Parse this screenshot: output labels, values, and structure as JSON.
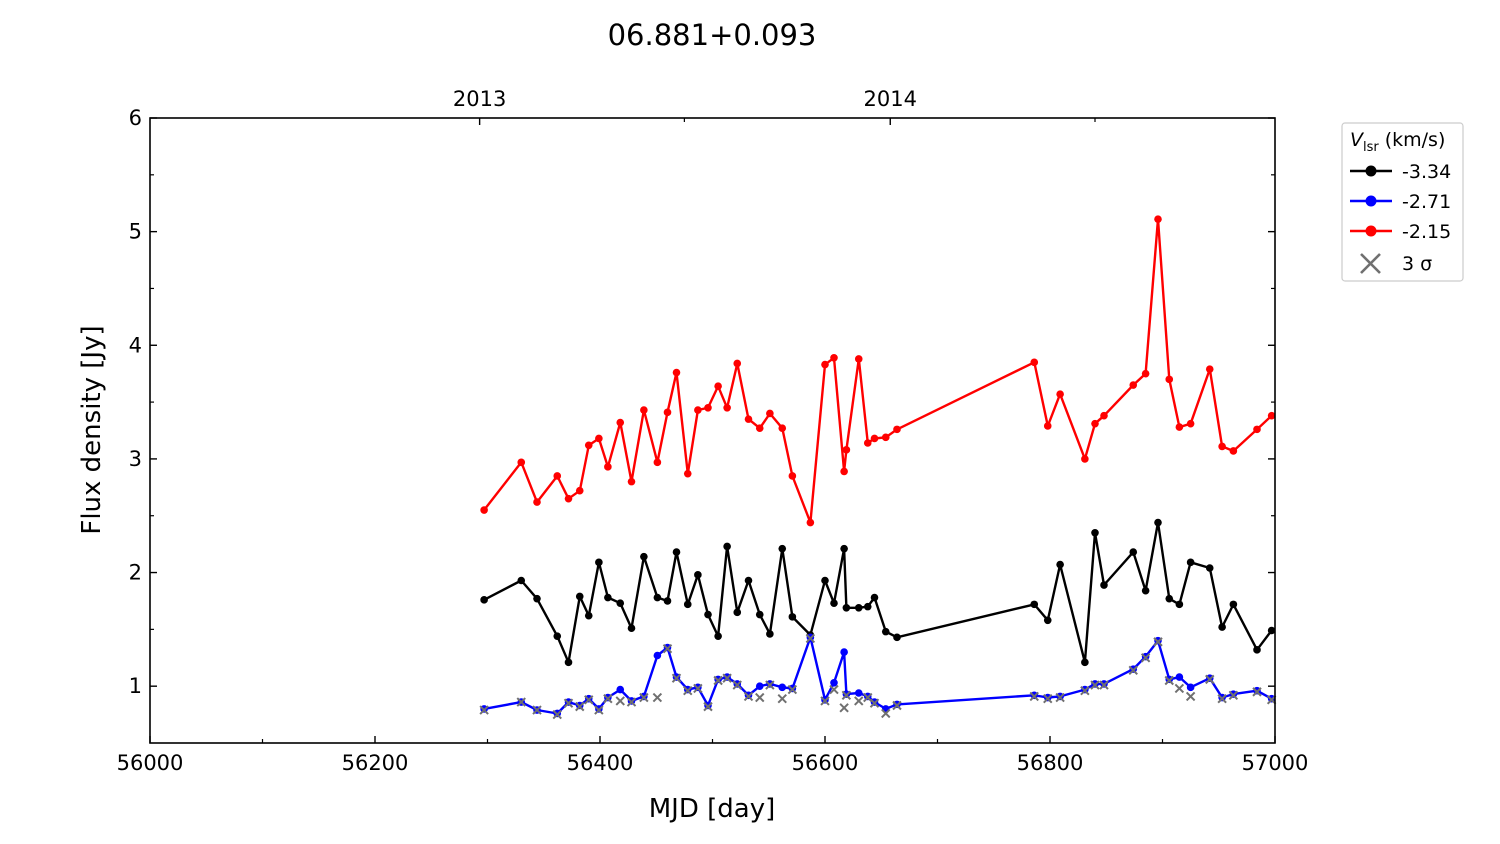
{
  "chart_data": {
    "type": "line",
    "title": "06.881+0.093",
    "xlabel": "MJD [day]",
    "ylabel": "Flux density [Jy]",
    "xlim": [
      56000,
      57000
    ],
    "ylim": [
      0.5,
      6
    ],
    "x_ticks": [
      "56000",
      "56200",
      "56400",
      "56600",
      "56800",
      "57000"
    ],
    "y_ticks": [
      "1",
      "2",
      "3",
      "4",
      "5",
      "6"
    ],
    "top_axis_labels": [
      {
        "label": "2013",
        "x": 56293
      },
      {
        "label": "2014",
        "x": 56658
      }
    ],
    "legend": {
      "title_main": "V",
      "title_sub": "lsr",
      "title_unit": "(km/s)",
      "placement": "upper-right-outside",
      "sigma_label": "3 σ"
    },
    "series": [
      {
        "name": "-3.34",
        "color": "#000000",
        "points": [
          [
            56297,
            1.76
          ],
          [
            56330,
            1.93
          ],
          [
            56344,
            1.77
          ],
          [
            56362,
            1.44
          ],
          [
            56372,
            1.21
          ],
          [
            56382,
            1.79
          ],
          [
            56390,
            1.62
          ],
          [
            56399,
            2.09
          ],
          [
            56407,
            1.78
          ],
          [
            56418,
            1.73
          ],
          [
            56428,
            1.51
          ],
          [
            56439,
            2.14
          ],
          [
            56451,
            1.78
          ],
          [
            56460,
            1.75
          ],
          [
            56468,
            2.18
          ],
          [
            56478,
            1.72
          ],
          [
            56487,
            1.98
          ],
          [
            56496,
            1.63
          ],
          [
            56505,
            1.44
          ],
          [
            56513,
            2.23
          ],
          [
            56522,
            1.65
          ],
          [
            56532,
            1.93
          ],
          [
            56542,
            1.63
          ],
          [
            56551,
            1.46
          ],
          [
            56562,
            2.21
          ],
          [
            56571,
            1.61
          ],
          [
            56587,
            1.45
          ],
          [
            56600,
            1.93
          ],
          [
            56608,
            1.73
          ],
          [
            56617,
            2.21
          ],
          [
            56619,
            1.69
          ],
          [
            56630,
            1.69
          ],
          [
            56638,
            1.7
          ],
          [
            56644,
            1.78
          ],
          [
            56654,
            1.48
          ],
          [
            56664,
            1.43
          ],
          [
            56786,
            1.72
          ],
          [
            56798,
            1.58
          ],
          [
            56809,
            2.07
          ],
          [
            56831,
            1.21
          ],
          [
            56840,
            2.35
          ],
          [
            56848,
            1.89
          ],
          [
            56874,
            2.18
          ],
          [
            56885,
            1.84
          ],
          [
            56896,
            2.44
          ],
          [
            56906,
            1.77
          ],
          [
            56915,
            1.72
          ],
          [
            56925,
            2.09
          ],
          [
            56942,
            2.04
          ],
          [
            56953,
            1.52
          ],
          [
            56963,
            1.72
          ],
          [
            56984,
            1.32
          ],
          [
            56997,
            1.49
          ]
        ]
      },
      {
        "name": "-2.71",
        "color": "#0000ff",
        "points": [
          [
            56297,
            0.8
          ],
          [
            56330,
            0.86
          ],
          [
            56344,
            0.79
          ],
          [
            56362,
            0.76
          ],
          [
            56372,
            0.86
          ],
          [
            56382,
            0.83
          ],
          [
            56390,
            0.89
          ],
          [
            56399,
            0.8
          ],
          [
            56407,
            0.9
          ],
          [
            56418,
            0.97
          ],
          [
            56428,
            0.87
          ],
          [
            56439,
            0.91
          ],
          [
            56451,
            1.27
          ],
          [
            56460,
            1.34
          ],
          [
            56468,
            1.08
          ],
          [
            56478,
            0.97
          ],
          [
            56487,
            0.99
          ],
          [
            56496,
            0.83
          ],
          [
            56505,
            1.06
          ],
          [
            56513,
            1.08
          ],
          [
            56522,
            1.02
          ],
          [
            56532,
            0.92
          ],
          [
            56542,
            1.0
          ],
          [
            56551,
            1.02
          ],
          [
            56562,
            0.99
          ],
          [
            56571,
            0.98
          ],
          [
            56587,
            1.43
          ],
          [
            56600,
            0.88
          ],
          [
            56608,
            1.03
          ],
          [
            56617,
            1.3
          ],
          [
            56619,
            0.93
          ],
          [
            56630,
            0.94
          ],
          [
            56638,
            0.91
          ],
          [
            56644,
            0.86
          ],
          [
            56654,
            0.8
          ],
          [
            56664,
            0.84
          ],
          [
            56786,
            0.92
          ],
          [
            56798,
            0.9
          ],
          [
            56809,
            0.91
          ],
          [
            56831,
            0.97
          ],
          [
            56840,
            1.02
          ],
          [
            56848,
            1.02
          ],
          [
            56874,
            1.15
          ],
          [
            56885,
            1.26
          ],
          [
            56896,
            1.4
          ],
          [
            56906,
            1.06
          ],
          [
            56915,
            1.08
          ],
          [
            56925,
            0.99
          ],
          [
            56942,
            1.07
          ],
          [
            56953,
            0.9
          ],
          [
            56963,
            0.93
          ],
          [
            56984,
            0.96
          ],
          [
            56997,
            0.89
          ]
        ]
      },
      {
        "name": "-2.15",
        "color": "#ff0000",
        "points": [
          [
            56297,
            2.55
          ],
          [
            56330,
            2.97
          ],
          [
            56344,
            2.62
          ],
          [
            56362,
            2.85
          ],
          [
            56372,
            2.65
          ],
          [
            56382,
            2.72
          ],
          [
            56390,
            3.12
          ],
          [
            56399,
            3.18
          ],
          [
            56407,
            2.93
          ],
          [
            56418,
            3.32
          ],
          [
            56428,
            2.8
          ],
          [
            56439,
            3.43
          ],
          [
            56451,
            2.97
          ],
          [
            56460,
            3.41
          ],
          [
            56468,
            3.76
          ],
          [
            56478,
            2.87
          ],
          [
            56487,
            3.43
          ],
          [
            56496,
            3.45
          ],
          [
            56505,
            3.64
          ],
          [
            56513,
            3.45
          ],
          [
            56522,
            3.84
          ],
          [
            56532,
            3.35
          ],
          [
            56542,
            3.27
          ],
          [
            56551,
            3.4
          ],
          [
            56562,
            3.27
          ],
          [
            56571,
            2.85
          ],
          [
            56587,
            2.44
          ],
          [
            56600,
            3.83
          ],
          [
            56608,
            3.89
          ],
          [
            56617,
            2.89
          ],
          [
            56619,
            3.08
          ],
          [
            56630,
            3.88
          ],
          [
            56638,
            3.14
          ],
          [
            56644,
            3.18
          ],
          [
            56654,
            3.19
          ],
          [
            56664,
            3.26
          ],
          [
            56786,
            3.85
          ],
          [
            56798,
            3.29
          ],
          [
            56809,
            3.57
          ],
          [
            56831,
            3.0
          ],
          [
            56840,
            3.31
          ],
          [
            56848,
            3.38
          ],
          [
            56874,
            3.65
          ],
          [
            56885,
            3.75
          ],
          [
            56896,
            5.11
          ],
          [
            56906,
            3.7
          ],
          [
            56915,
            3.28
          ],
          [
            56925,
            3.31
          ],
          [
            56942,
            3.79
          ],
          [
            56953,
            3.11
          ],
          [
            56963,
            3.07
          ],
          [
            56984,
            3.26
          ],
          [
            56997,
            3.38
          ]
        ]
      }
    ],
    "sigma_markers": {
      "name": "3 σ",
      "color": "#707070",
      "points": [
        [
          56297,
          0.79
        ],
        [
          56330,
          0.86
        ],
        [
          56344,
          0.79
        ],
        [
          56362,
          0.75
        ],
        [
          56372,
          0.85
        ],
        [
          56382,
          0.82
        ],
        [
          56390,
          0.88
        ],
        [
          56399,
          0.79
        ],
        [
          56407,
          0.89
        ],
        [
          56418,
          0.87
        ],
        [
          56428,
          0.86
        ],
        [
          56439,
          0.9
        ],
        [
          56451,
          0.9
        ],
        [
          56460,
          1.33
        ],
        [
          56468,
          1.07
        ],
        [
          56478,
          0.96
        ],
        [
          56487,
          0.98
        ],
        [
          56496,
          0.82
        ],
        [
          56505,
          1.05
        ],
        [
          56513,
          1.07
        ],
        [
          56522,
          1.01
        ],
        [
          56532,
          0.91
        ],
        [
          56542,
          0.9
        ],
        [
          56551,
          1.01
        ],
        [
          56562,
          0.89
        ],
        [
          56571,
          0.97
        ],
        [
          56587,
          1.42
        ],
        [
          56600,
          0.87
        ],
        [
          56608,
          0.97
        ],
        [
          56617,
          0.81
        ],
        [
          56619,
          0.92
        ],
        [
          56630,
          0.87
        ],
        [
          56638,
          0.9
        ],
        [
          56644,
          0.85
        ],
        [
          56654,
          0.76
        ],
        [
          56664,
          0.83
        ],
        [
          56786,
          0.91
        ],
        [
          56798,
          0.89
        ],
        [
          56809,
          0.9
        ],
        [
          56831,
          0.96
        ],
        [
          56840,
          1.01
        ],
        [
          56848,
          1.01
        ],
        [
          56874,
          1.14
        ],
        [
          56885,
          1.25
        ],
        [
          56896,
          1.39
        ],
        [
          56906,
          1.05
        ],
        [
          56915,
          0.98
        ],
        [
          56925,
          0.91
        ],
        [
          56942,
          1.06
        ],
        [
          56953,
          0.89
        ],
        [
          56963,
          0.92
        ],
        [
          56984,
          0.95
        ],
        [
          56997,
          0.88
        ]
      ]
    }
  }
}
